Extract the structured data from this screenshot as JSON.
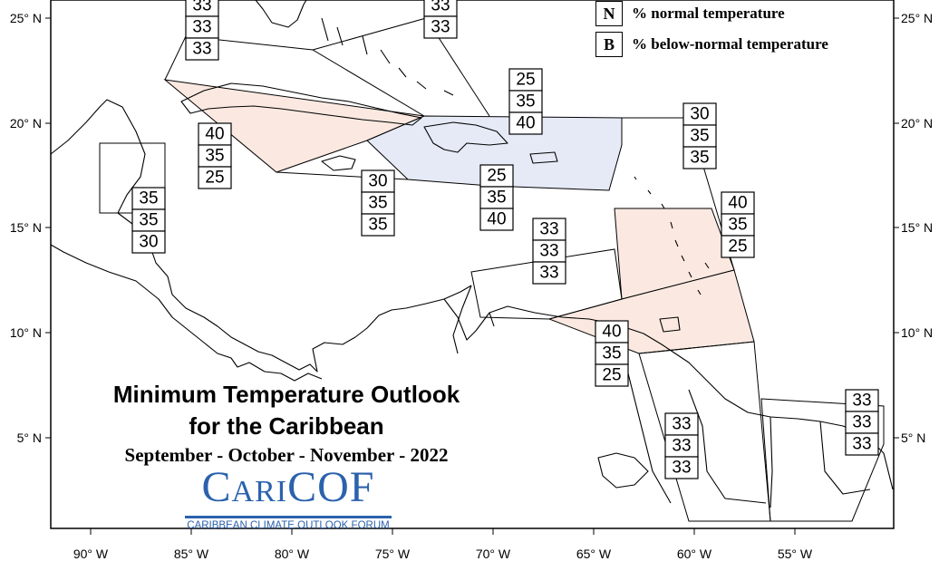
{
  "title": {
    "line1": "Minimum Temperature Outlook",
    "line2": "for the Caribbean",
    "period": "September - October - November - 2022"
  },
  "logo": {
    "name": "CariCOF",
    "subtitle": "CARIBBEAN CLIMATE OUTLOOK FORUM"
  },
  "legend": [
    {
      "key": "N",
      "label": "% normal temperature"
    },
    {
      "key": "B",
      "label": "% below-normal temperature"
    }
  ],
  "axes": {
    "x_ticks": [
      "90° W",
      "85° W",
      "80° W",
      "75° W",
      "70° W",
      "65° W",
      "60° W",
      "55° W"
    ],
    "y_ticks": [
      "25° N",
      "20° N",
      "15° N",
      "10° N",
      "5° N"
    ]
  },
  "colors": {
    "above_normal_shade": "#fbe9e1",
    "below_normal_shade": "#e6eaf7",
    "logo_blue": "#2b62ad"
  },
  "regions": [
    {
      "area": "Bahamas west",
      "values": [
        "33",
        "33",
        "33"
      ]
    },
    {
      "area": "Bahamas east",
      "values": [
        "33",
        "33"
      ]
    },
    {
      "area": "Puerto Rico and Virgin Islands",
      "values": [
        "25",
        "35",
        "40"
      ]
    },
    {
      "area": "Leeward Islands north",
      "values": [
        "30",
        "35",
        "35"
      ]
    },
    {
      "area": "Cuba",
      "values": [
        "40",
        "35",
        "25"
      ]
    },
    {
      "area": "Belize",
      "values": [
        "35",
        "35",
        "30"
      ]
    },
    {
      "area": "Jamaica",
      "values": [
        "30",
        "35",
        "35"
      ]
    },
    {
      "area": "Hispaniola",
      "values": [
        "25",
        "35",
        "40"
      ]
    },
    {
      "area": "Leeward and Windward Islands",
      "values": [
        "40",
        "35",
        "25"
      ]
    },
    {
      "area": "ABC Islands",
      "values": [
        "33",
        "33",
        "33"
      ]
    },
    {
      "area": "Trinidad and Tobago",
      "values": [
        "40",
        "35",
        "25"
      ]
    },
    {
      "area": "Guyana",
      "values": [
        "33",
        "33",
        "33"
      ]
    },
    {
      "area": "French Guiana and Suriname",
      "values": [
        "33",
        "33",
        "33"
      ]
    }
  ]
}
